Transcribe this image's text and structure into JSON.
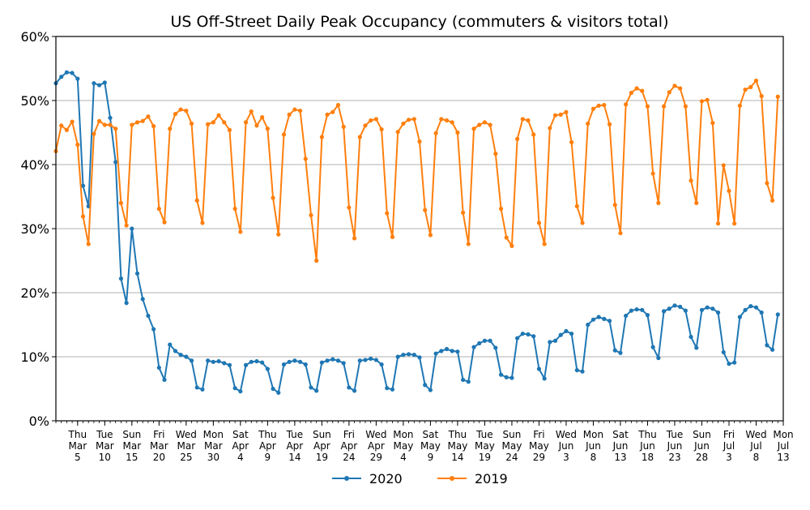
{
  "chart_data": {
    "type": "line",
    "title": "US Off-Street Daily Peak Occupancy (commuters & visitors total)",
    "xlabel": "",
    "ylabel": "",
    "ylim": [
      0,
      60
    ],
    "grid": "horizontal",
    "legend": "bottom-center",
    "y_ticks": [
      {
        "value": 0,
        "label": "0%"
      },
      {
        "value": 10,
        "label": "10%"
      },
      {
        "value": 20,
        "label": "20%"
      },
      {
        "value": 30,
        "label": "30%"
      },
      {
        "value": 40,
        "label": "40%"
      },
      {
        "value": 50,
        "label": "50%"
      },
      {
        "value": 60,
        "label": "60%"
      }
    ],
    "x_ticks": [
      {
        "date": "2020-03-05",
        "l1": "Thu",
        "l2": "Mar",
        "l3": "5"
      },
      {
        "date": "2020-03-10",
        "l1": "Tue",
        "l2": "Mar",
        "l3": "10"
      },
      {
        "date": "2020-03-15",
        "l1": "Sun",
        "l2": "Mar",
        "l3": "15"
      },
      {
        "date": "2020-03-20",
        "l1": "Fri",
        "l2": "Mar",
        "l3": "20"
      },
      {
        "date": "2020-03-25",
        "l1": "Wed",
        "l2": "Mar",
        "l3": "25"
      },
      {
        "date": "2020-03-30",
        "l1": "Mon",
        "l2": "Mar",
        "l3": "30"
      },
      {
        "date": "2020-04-04",
        "l1": "Sat",
        "l2": "Apr",
        "l3": "4"
      },
      {
        "date": "2020-04-09",
        "l1": "Thu",
        "l2": "Apr",
        "l3": "9"
      },
      {
        "date": "2020-04-14",
        "l1": "Tue",
        "l2": "Apr",
        "l3": "14"
      },
      {
        "date": "2020-04-19",
        "l1": "Sun",
        "l2": "Apr",
        "l3": "19"
      },
      {
        "date": "2020-04-24",
        "l1": "Fri",
        "l2": "Apr",
        "l3": "24"
      },
      {
        "date": "2020-04-29",
        "l1": "Wed",
        "l2": "Apr",
        "l3": "29"
      },
      {
        "date": "2020-05-04",
        "l1": "Mon",
        "l2": "May",
        "l3": "4"
      },
      {
        "date": "2020-05-09",
        "l1": "Sat",
        "l2": "May",
        "l3": "9"
      },
      {
        "date": "2020-05-14",
        "l1": "Thu",
        "l2": "May",
        "l3": "14"
      },
      {
        "date": "2020-05-19",
        "l1": "Tue",
        "l2": "May",
        "l3": "19"
      },
      {
        "date": "2020-05-24",
        "l1": "Sun",
        "l2": "May",
        "l3": "24"
      },
      {
        "date": "2020-05-29",
        "l1": "Fri",
        "l2": "May",
        "l3": "29"
      },
      {
        "date": "2020-06-03",
        "l1": "Wed",
        "l2": "Jun",
        "l3": "3"
      },
      {
        "date": "2020-06-08",
        "l1": "Mon",
        "l2": "Jun",
        "l3": "8"
      },
      {
        "date": "2020-06-13",
        "l1": "Sat",
        "l2": "Jun",
        "l3": "13"
      },
      {
        "date": "2020-06-18",
        "l1": "Thu",
        "l2": "Jun",
        "l3": "18"
      },
      {
        "date": "2020-06-23",
        "l1": "Tue",
        "l2": "Jun",
        "l3": "23"
      },
      {
        "date": "2020-06-28",
        "l1": "Sun",
        "l2": "Jun",
        "l3": "28"
      },
      {
        "date": "2020-07-03",
        "l1": "Fri",
        "l2": "Jul",
        "l3": "3"
      },
      {
        "date": "2020-07-08",
        "l1": "Wed",
        "l2": "Jul",
        "l3": "8"
      },
      {
        "date": "2020-07-13",
        "l1": "Mon",
        "l2": "Jul",
        "l3": "13"
      }
    ],
    "x_range": [
      "2020-03-01",
      "2020-07-13"
    ],
    "series": [
      {
        "name": "2020",
        "color": "#1f77b4",
        "values": [
          52.7,
          53.7,
          54.4,
          54.3,
          53.4,
          36.7,
          33.5,
          52.7,
          52.4,
          52.8,
          47.3,
          40.4,
          22.2,
          18.4,
          30.0,
          23.0,
          19.0,
          16.4,
          14.3,
          8.3,
          6.4,
          11.9,
          10.9,
          10.3,
          10.0,
          9.4,
          5.2,
          4.9,
          9.4,
          9.2,
          9.3,
          9.0,
          8.7,
          5.1,
          4.6,
          8.7,
          9.2,
          9.3,
          9.1,
          8.1,
          5.0,
          4.4,
          8.8,
          9.2,
          9.4,
          9.2,
          8.8,
          5.2,
          4.7,
          9.1,
          9.4,
          9.6,
          9.4,
          9.0,
          5.2,
          4.7,
          9.4,
          9.5,
          9.7,
          9.5,
          8.8,
          5.1,
          4.9,
          10.0,
          10.3,
          10.4,
          10.3,
          9.9,
          5.6,
          4.8,
          10.5,
          10.9,
          11.2,
          10.9,
          10.8,
          6.4,
          6.1,
          11.5,
          12.1,
          12.5,
          12.5,
          11.4,
          7.2,
          6.8,
          6.7,
          12.9,
          13.6,
          13.5,
          13.2,
          8.1,
          6.6,
          12.3,
          12.5,
          13.4,
          14.0,
          13.6,
          7.9,
          7.7,
          15.0,
          15.8,
          16.2,
          15.9,
          15.6,
          11.0,
          10.6,
          16.4,
          17.2,
          17.4,
          17.3,
          16.5,
          11.5,
          9.8,
          17.1,
          17.5,
          18.0,
          17.8,
          17.2,
          13.1,
          11.4,
          17.3,
          17.7,
          17.5,
          16.9,
          10.7,
          8.9,
          9.1,
          16.2,
          17.3,
          17.9,
          17.7,
          16.9,
          11.8,
          11.1,
          16.6
        ]
      },
      {
        "name": "2019",
        "color": "#ff7f0e",
        "values": [
          42.1,
          46.1,
          45.4,
          46.7,
          43.1,
          31.9,
          27.6,
          44.8,
          46.8,
          46.2,
          46.2,
          45.6,
          34.0,
          30.5,
          46.2,
          46.6,
          46.8,
          47.5,
          46.0,
          33.1,
          31.0,
          45.6,
          47.9,
          48.6,
          48.4,
          46.4,
          34.4,
          30.9,
          46.3,
          46.6,
          47.7,
          46.6,
          45.4,
          33.1,
          29.5,
          46.6,
          48.3,
          46.1,
          47.4,
          45.6,
          34.8,
          29.1,
          44.7,
          47.8,
          48.6,
          48.4,
          40.9,
          32.1,
          25.0,
          44.3,
          47.8,
          48.2,
          49.3,
          45.9,
          33.3,
          28.5,
          44.3,
          46.1,
          46.9,
          47.1,
          45.5,
          32.4,
          28.7,
          45.1,
          46.4,
          47.0,
          47.1,
          43.6,
          32.9,
          29.0,
          44.9,
          47.1,
          46.9,
          46.6,
          45.0,
          32.5,
          27.6,
          45.6,
          46.2,
          46.6,
          46.2,
          41.7,
          33.1,
          28.6,
          27.3,
          44.0,
          47.1,
          46.9,
          44.7,
          30.9,
          27.6,
          45.7,
          47.7,
          47.8,
          48.2,
          43.5,
          33.5,
          30.9,
          46.4,
          48.7,
          49.2,
          49.3,
          46.3,
          33.7,
          29.3,
          49.4,
          51.2,
          51.9,
          51.5,
          49.1,
          38.6,
          34.0,
          49.1,
          51.3,
          52.3,
          51.9,
          49.1,
          37.5,
          34.0,
          49.9,
          50.1,
          46.5,
          30.8,
          39.9,
          35.9,
          30.8,
          49.2,
          51.7,
          52.1,
          53.1,
          50.7,
          37.1,
          34.4,
          50.6
        ]
      }
    ]
  }
}
